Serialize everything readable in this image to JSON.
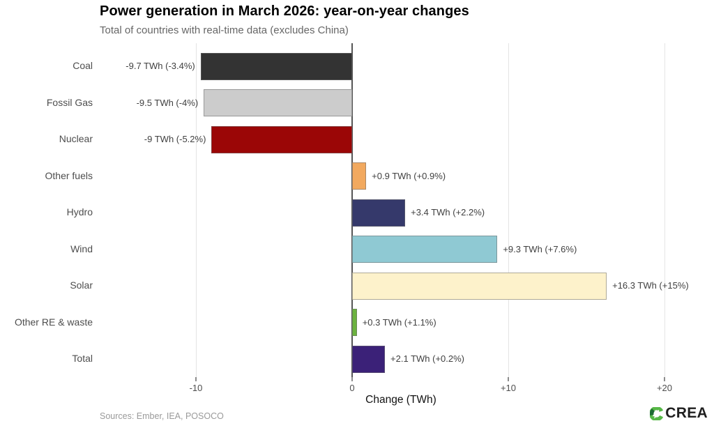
{
  "header": {
    "title": "Power generation in March 2026: year-on-year changes",
    "subtitle": "Total of countries with real-time data (excludes China)"
  },
  "chart_data": {
    "type": "bar",
    "orientation": "horizontal",
    "title": "Power generation in March 2026: year-on-year changes",
    "subtitle": "Total of countries with real-time data (excludes China)",
    "xlabel": "Change (TWh)",
    "xlim": [
      -15.5,
      23.2
    ],
    "grid": "vertical-gridlines-at-ticks",
    "legend": "none",
    "zero_line": true,
    "categories": [
      "Coal",
      "Fossil Gas",
      "Nuclear",
      "Other fuels",
      "Hydro",
      "Wind",
      "Solar",
      "Other RE & waste",
      "Total"
    ],
    "values": [
      -9.7,
      -9.5,
      -9,
      0.9,
      3.4,
      9.3,
      16.3,
      0.3,
      2.1
    ],
    "value_labels": [
      "-9.7 TWh (-3.4%)",
      "-9.5 TWh (-4%)",
      "-9 TWh (-5.2%)",
      "+0.9 TWh (+0.9%)",
      "+3.4 TWh (+2.2%)",
      "+9.3 TWh (+7.6%)",
      "+16.3 TWh (+15%)",
      "+0.3 TWh (+1.1%)",
      "+2.1 TWh (+0.2%)"
    ],
    "bar_colors": [
      "#333333",
      "#cccccc",
      "#9b0606",
      "#f2a95f",
      "#35396b",
      "#8fc9d3",
      "#fdf2cb",
      "#6cb33f",
      "#3b2178"
    ],
    "x_ticks": [
      {
        "value": -10,
        "label": "-10"
      },
      {
        "value": 0,
        "label": "0"
      },
      {
        "value": 10,
        "label": "+10"
      },
      {
        "value": 20,
        "label": "+20"
      }
    ]
  },
  "footer": {
    "sources": "Sources: Ember, IEA, POSOCO",
    "logo_text": "CREA",
    "logo_icon": "crea-leaf-icon",
    "logo_green_light": "#57b847",
    "logo_green_dark": "#1e6b34"
  }
}
